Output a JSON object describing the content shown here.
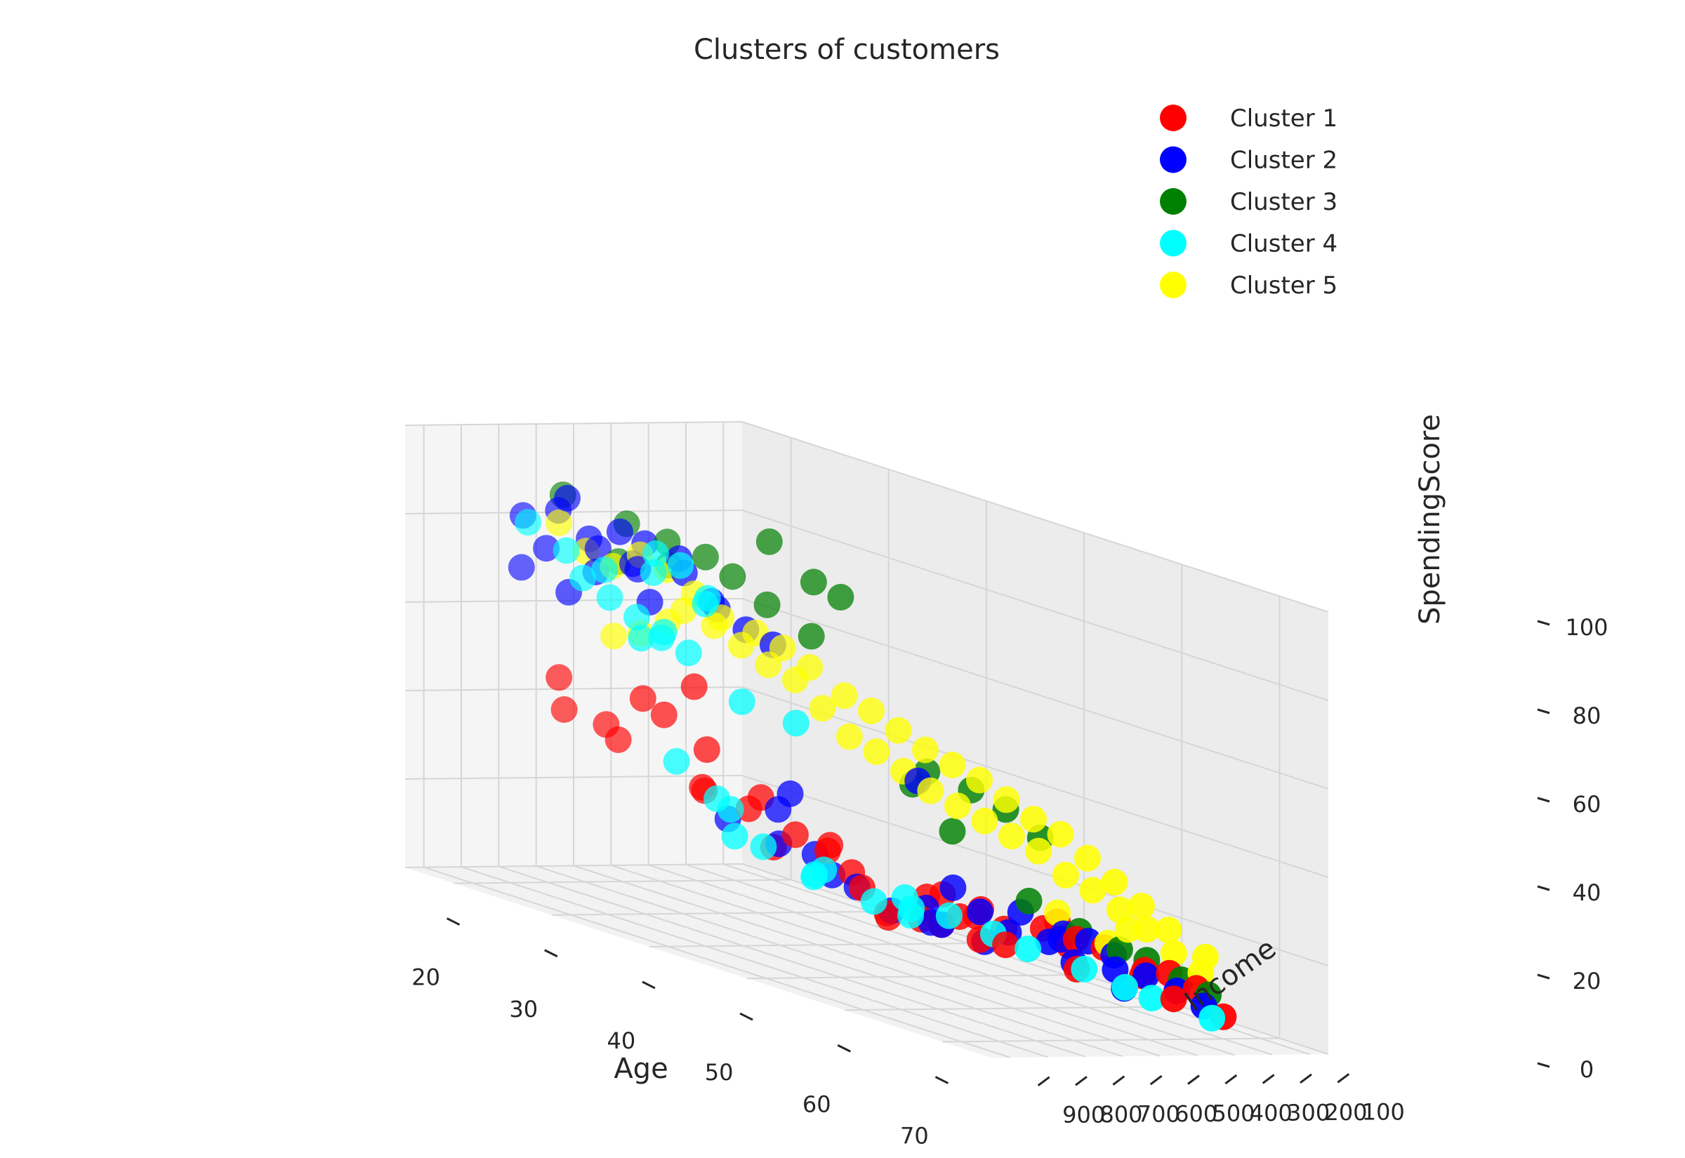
{
  "chart_data": {
    "type": "scatter",
    "projection": "3d",
    "title": "Clusters of customers",
    "xlabel": "Age",
    "ylabel": "Income",
    "zlabel": "SpendingScore",
    "xlim": [
      15,
      75
    ],
    "ylim": [
      50,
      950
    ],
    "zlim": [
      0,
      100
    ],
    "xticks": [
      "20",
      "30",
      "40",
      "50",
      "60",
      "70"
    ],
    "yticks": [
      "100",
      "200",
      "300",
      "400",
      "500",
      "600",
      "700",
      "800",
      "900"
    ],
    "zticks": [
      "0",
      "20",
      "40",
      "60",
      "80",
      "100"
    ],
    "grid": true,
    "legend_position": "top-right",
    "series": [
      {
        "name": "Cluster 1",
        "color": "#ff0000",
        "points": [
          [
            70,
            200,
            5
          ],
          [
            68,
            220,
            10
          ],
          [
            65,
            280,
            12
          ],
          [
            62,
            310,
            15
          ],
          [
            58,
            330,
            18
          ],
          [
            63,
            150,
            4
          ],
          [
            56,
            420,
            15
          ],
          [
            50,
            470,
            18
          ],
          [
            48,
            520,
            12
          ],
          [
            60,
            350,
            14
          ],
          [
            54,
            430,
            18
          ],
          [
            52,
            480,
            20
          ],
          [
            45,
            540,
            20
          ],
          [
            58,
            280,
            14
          ],
          [
            66,
            240,
            12
          ],
          [
            44,
            420,
            10
          ],
          [
            46,
            380,
            10
          ],
          [
            35,
            700,
            55
          ],
          [
            30,
            650,
            45
          ],
          [
            32,
            600,
            30
          ],
          [
            28,
            720,
            38
          ],
          [
            36,
            580,
            28
          ],
          [
            40,
            560,
            25
          ],
          [
            38,
            600,
            32
          ],
          [
            42,
            520,
            24
          ],
          [
            34,
            640,
            40
          ],
          [
            25,
            800,
            50
          ],
          [
            24,
            760,
            42
          ],
          [
            45,
            300,
            8
          ],
          [
            47,
            250,
            6
          ],
          [
            50,
            260,
            7
          ],
          [
            55,
            200,
            5
          ],
          [
            60,
            420,
            18
          ],
          [
            43,
            460,
            15
          ],
          [
            33,
            620,
            30
          ],
          [
            37,
            540,
            20
          ],
          [
            41,
            500,
            22
          ],
          [
            29,
            680,
            48
          ],
          [
            64,
            260,
            10
          ],
          [
            48,
            330,
            12
          ],
          [
            26,
            700,
            40
          ],
          [
            52,
            390,
            15
          ]
        ]
      },
      {
        "name": "Cluster 2",
        "color": "#0000ff",
        "points": [
          [
            28,
            880,
            90
          ],
          [
            30,
            850,
            85
          ],
          [
            32,
            820,
            88
          ],
          [
            26,
            860,
            80
          ],
          [
            25,
            900,
            75
          ],
          [
            29,
            800,
            82
          ],
          [
            31,
            760,
            80
          ],
          [
            33,
            780,
            86
          ],
          [
            35,
            740,
            84
          ],
          [
            27,
            830,
            92
          ],
          [
            24,
            870,
            86
          ],
          [
            30,
            720,
            78
          ],
          [
            34,
            700,
            80
          ],
          [
            36,
            680,
            75
          ],
          [
            32,
            740,
            72
          ],
          [
            38,
            640,
            70
          ],
          [
            40,
            620,
            68
          ],
          [
            37,
            690,
            74
          ],
          [
            28,
            780,
            76
          ],
          [
            26,
            800,
            70
          ],
          [
            64,
            250,
            10
          ],
          [
            66,
            220,
            8
          ],
          [
            60,
            300,
            15
          ],
          [
            58,
            320,
            14
          ],
          [
            55,
            350,
            18
          ],
          [
            52,
            380,
            16
          ],
          [
            48,
            420,
            14
          ],
          [
            46,
            460,
            12
          ],
          [
            50,
            400,
            20
          ],
          [
            56,
            300,
            12
          ],
          [
            62,
            280,
            10
          ],
          [
            68,
            200,
            6
          ],
          [
            43,
            540,
            18
          ],
          [
            42,
            560,
            22
          ],
          [
            44,
            500,
            16
          ],
          [
            39,
            580,
            30
          ],
          [
            41,
            600,
            35
          ],
          [
            47,
            380,
            10
          ],
          [
            53,
            330,
            12
          ],
          [
            57,
            260,
            8
          ],
          [
            61,
            230,
            5
          ],
          [
            45,
            300,
            8
          ],
          [
            49,
            290,
            7
          ],
          [
            51,
            520,
            45
          ],
          [
            35,
            610,
            25
          ],
          [
            36,
            500,
            20
          ],
          [
            59,
            340,
            16
          ],
          [
            63,
            310,
            14
          ]
        ]
      },
      {
        "name": "Cluster 3",
        "color": "#008000",
        "points": [
          [
            30,
            920,
            95
          ],
          [
            35,
            880,
            92
          ],
          [
            38,
            850,
            90
          ],
          [
            40,
            800,
            88
          ],
          [
            42,
            780,
            85
          ],
          [
            45,
            760,
            95
          ],
          [
            48,
            720,
            88
          ],
          [
            50,
            700,
            86
          ],
          [
            44,
            740,
            80
          ],
          [
            37,
            820,
            84
          ],
          [
            33,
            850,
            82
          ],
          [
            55,
            600,
            50
          ],
          [
            58,
            560,
            48
          ],
          [
            60,
            520,
            45
          ],
          [
            62,
            480,
            40
          ],
          [
            66,
            300,
            15
          ],
          [
            68,
            260,
            12
          ],
          [
            70,
            240,
            10
          ],
          [
            64,
            320,
            16
          ],
          [
            52,
            560,
            45
          ],
          [
            47,
            700,
            75
          ],
          [
            53,
            480,
            35
          ],
          [
            57,
            380,
            22
          ],
          [
            61,
            350,
            18
          ]
        ]
      },
      {
        "name": "Cluster 4",
        "color": "#00ffff",
        "points": [
          [
            18,
            700,
            80
          ],
          [
            20,
            650,
            75
          ],
          [
            22,
            600,
            72
          ],
          [
            19,
            580,
            68
          ],
          [
            21,
            560,
            65
          ],
          [
            23,
            540,
            62
          ],
          [
            25,
            520,
            60
          ],
          [
            24,
            500,
            58
          ],
          [
            26,
            480,
            56
          ],
          [
            20,
            450,
            55
          ],
          [
            27,
            600,
            75
          ],
          [
            29,
            580,
            78
          ],
          [
            31,
            560,
            72
          ],
          [
            30,
            540,
            70
          ],
          [
            28,
            620,
            80
          ],
          [
            22,
            300,
            20
          ],
          [
            20,
            200,
            10
          ],
          [
            26,
            280,
            12
          ],
          [
            30,
            250,
            8
          ],
          [
            32,
            300,
            10
          ],
          [
            35,
            220,
            6
          ],
          [
            38,
            200,
            5
          ],
          [
            40,
            250,
            8
          ],
          [
            45,
            280,
            10
          ],
          [
            50,
            200,
            6
          ],
          [
            55,
            180,
            5
          ],
          [
            58,
            150,
            3
          ],
          [
            60,
            130,
            2
          ],
          [
            65,
            100,
            1
          ],
          [
            48,
            240,
            8
          ],
          [
            42,
            320,
            12
          ],
          [
            36,
            380,
            14
          ],
          [
            28,
            420,
            22
          ],
          [
            24,
            460,
            30
          ],
          [
            33,
            520,
            50
          ],
          [
            37,
            480,
            48
          ]
        ]
      },
      {
        "name": "Cluster 5",
        "color": "#ffff00",
        "points": [
          [
            25,
            800,
            85
          ],
          [
            27,
            780,
            80
          ],
          [
            29,
            760,
            78
          ],
          [
            31,
            740,
            82
          ],
          [
            33,
            720,
            80
          ],
          [
            35,
            700,
            76
          ],
          [
            37,
            680,
            72
          ],
          [
            32,
            650,
            70
          ],
          [
            34,
            620,
            68
          ],
          [
            36,
            600,
            65
          ],
          [
            30,
            640,
            66
          ],
          [
            28,
            660,
            62
          ],
          [
            26,
            680,
            60
          ],
          [
            38,
            580,
            62
          ],
          [
            40,
            560,
            60
          ],
          [
            42,
            540,
            55
          ],
          [
            44,
            520,
            50
          ],
          [
            46,
            500,
            48
          ],
          [
            48,
            480,
            45
          ],
          [
            50,
            460,
            42
          ],
          [
            52,
            440,
            40
          ],
          [
            54,
            420,
            38
          ],
          [
            56,
            400,
            36
          ],
          [
            58,
            380,
            34
          ],
          [
            60,
            360,
            30
          ],
          [
            62,
            340,
            28
          ],
          [
            64,
            320,
            25
          ],
          [
            66,
            300,
            22
          ],
          [
            68,
            280,
            18
          ],
          [
            70,
            260,
            15
          ],
          [
            45,
            560,
            60
          ],
          [
            47,
            540,
            58
          ],
          [
            49,
            520,
            55
          ],
          [
            51,
            500,
            52
          ],
          [
            53,
            480,
            50
          ],
          [
            55,
            460,
            48
          ],
          [
            57,
            440,
            45
          ],
          [
            59,
            420,
            42
          ],
          [
            61,
            400,
            40
          ],
          [
            63,
            380,
            36
          ],
          [
            65,
            360,
            32
          ],
          [
            67,
            340,
            28
          ],
          [
            69,
            320,
            24
          ],
          [
            72,
            300,
            20
          ],
          [
            43,
            600,
            65
          ],
          [
            41,
            620,
            68
          ],
          [
            39,
            640,
            70
          ],
          [
            66,
            350,
            22
          ],
          [
            62,
            300,
            16
          ],
          [
            58,
            330,
            20
          ]
        ]
      }
    ]
  }
}
